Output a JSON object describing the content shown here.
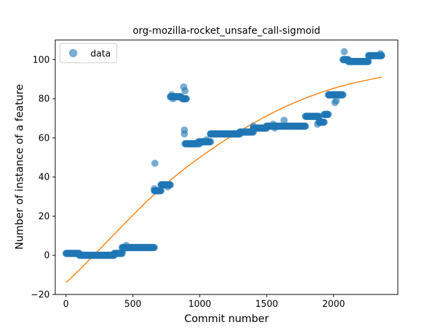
{
  "chart_data": {
    "type": "scatter",
    "title": "org-mozilla-rocket_unsafe_call-sigmoid",
    "xlabel": "Commit number",
    "ylabel": "Number of instance of a feature",
    "xlim": [
      -80,
      2480
    ],
    "ylim": [
      -20,
      110
    ],
    "xticks": [
      0,
      500,
      1000,
      1500,
      2000
    ],
    "yticks": [
      -20,
      0,
      20,
      40,
      60,
      80,
      100
    ],
    "grid": false,
    "legend_position": "top-left",
    "colors": {
      "data": "#1f77b4",
      "fit": "#ff7f0e"
    },
    "series": [
      {
        "name": "data",
        "kind": "scatter",
        "segments": [
          [
            0,
            100,
            1,
            1
          ],
          [
            100,
            160,
            0,
            0
          ],
          [
            160,
            360,
            0,
            0
          ],
          [
            360,
            420,
            1,
            1
          ],
          [
            420,
            470,
            4,
            4
          ],
          [
            470,
            660,
            4,
            4
          ],
          [
            660,
            710,
            33,
            33
          ],
          [
            710,
            780,
            36,
            36
          ],
          [
            780,
            860,
            81,
            81
          ],
          [
            870,
            900,
            80,
            80
          ],
          [
            890,
            990,
            57,
            57
          ],
          [
            990,
            1080,
            58,
            58
          ],
          [
            1080,
            1300,
            62,
            62
          ],
          [
            1300,
            1400,
            63,
            63
          ],
          [
            1400,
            1500,
            65,
            65
          ],
          [
            1500,
            1580,
            66,
            66
          ],
          [
            1580,
            1790,
            66,
            66
          ],
          [
            1790,
            1890,
            71,
            71
          ],
          [
            1890,
            1930,
            68,
            68
          ],
          [
            1930,
            1960,
            72,
            72
          ],
          [
            1960,
            2070,
            82,
            82
          ],
          [
            2070,
            2110,
            100,
            100
          ],
          [
            2110,
            2260,
            99,
            99
          ],
          [
            2260,
            2360,
            102,
            102
          ]
        ],
        "points": [
          [
            30,
            1
          ],
          [
            60,
            1
          ],
          [
            90,
            1
          ],
          [
            110,
            0
          ],
          [
            150,
            0
          ],
          [
            200,
            0
          ],
          [
            250,
            0
          ],
          [
            300,
            0
          ],
          [
            350,
            0
          ],
          [
            400,
            1
          ],
          [
            430,
            3
          ],
          [
            450,
            5
          ],
          [
            500,
            4
          ],
          [
            550,
            4
          ],
          [
            600,
            4
          ],
          [
            650,
            4
          ],
          [
            665,
            47
          ],
          [
            660,
            34
          ],
          [
            690,
            33
          ],
          [
            720,
            36
          ],
          [
            760,
            35
          ],
          [
            790,
            82
          ],
          [
            800,
            80
          ],
          [
            820,
            81
          ],
          [
            850,
            81
          ],
          [
            880,
            86
          ],
          [
            885,
            64
          ],
          [
            885,
            62
          ],
          [
            890,
            84
          ],
          [
            900,
            57
          ],
          [
            950,
            57
          ],
          [
            1000,
            57
          ],
          [
            1050,
            59
          ],
          [
            1080,
            62
          ],
          [
            1150,
            62
          ],
          [
            1200,
            62
          ],
          [
            1250,
            62
          ],
          [
            1300,
            63
          ],
          [
            1350,
            63
          ],
          [
            1400,
            66
          ],
          [
            1450,
            65
          ],
          [
            1500,
            66
          ],
          [
            1550,
            67
          ],
          [
            1560,
            65
          ],
          [
            1600,
            66
          ],
          [
            1630,
            69
          ],
          [
            1700,
            66
          ],
          [
            1750,
            66
          ],
          [
            1800,
            71
          ],
          [
            1850,
            71
          ],
          [
            1880,
            67
          ],
          [
            1890,
            70
          ],
          [
            1900,
            68
          ],
          [
            1950,
            72
          ],
          [
            1970,
            82
          ],
          [
            2000,
            82
          ],
          [
            2010,
            78
          ],
          [
            2020,
            79
          ],
          [
            2050,
            82
          ],
          [
            2080,
            104
          ],
          [
            2090,
            100
          ],
          [
            2150,
            99
          ],
          [
            2200,
            99
          ],
          [
            2250,
            99
          ],
          [
            2280,
            102
          ],
          [
            2300,
            102
          ],
          [
            2340,
            102
          ],
          [
            2350,
            103
          ],
          [
            2355,
            102
          ]
        ]
      },
      {
        "name": "",
        "kind": "line",
        "x": [
          0,
          100,
          200,
          300,
          400,
          500,
          600,
          700,
          800,
          900,
          1000,
          1100,
          1200,
          1300,
          1400,
          1500,
          1600,
          1700,
          1800,
          1900,
          2000,
          2100,
          2200,
          2300,
          2360
        ],
        "y": [
          -14,
          -7.5,
          -0.5,
          6.5,
          13.5,
          20.5,
          27.3,
          33.5,
          39.5,
          45,
          50,
          54.8,
          59.3,
          63.5,
          67.5,
          71.2,
          74.7,
          77.8,
          80.6,
          83.1,
          85.3,
          87.2,
          88.8,
          90.2,
          91
        ]
      }
    ],
    "legend": [
      "data"
    ]
  }
}
